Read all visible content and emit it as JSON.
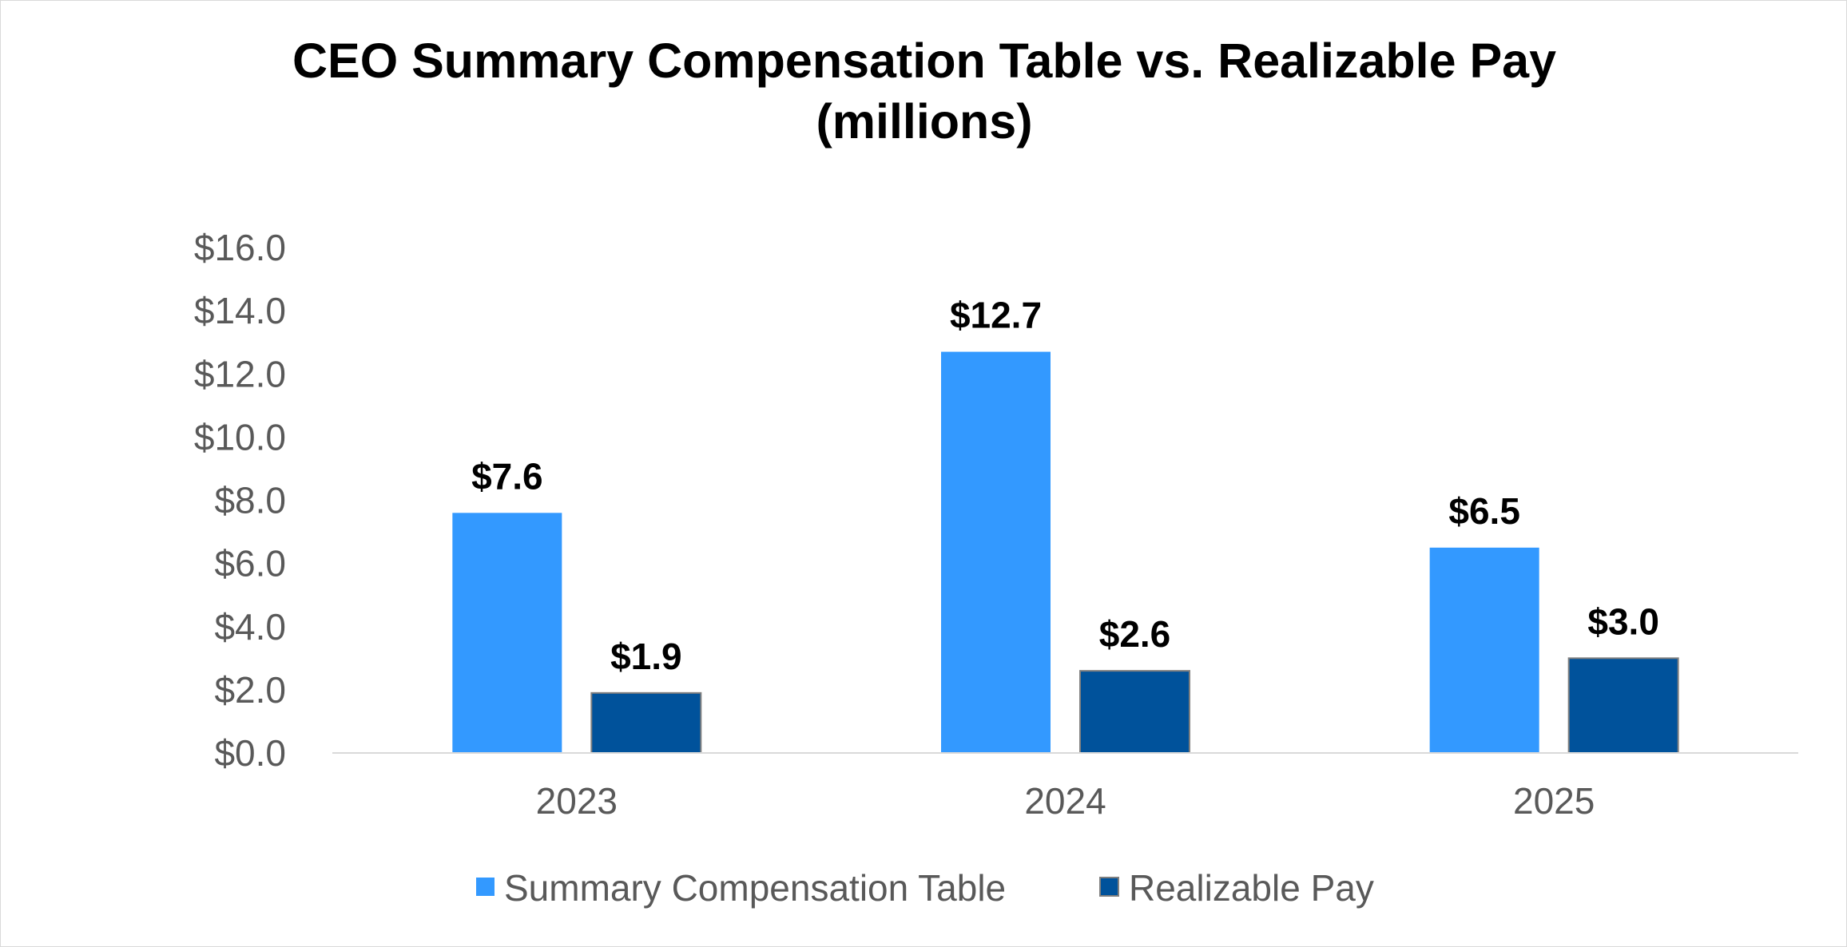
{
  "chart_data": {
    "type": "bar",
    "title_lines": [
      "CEO Summary Compensation Table vs. Realizable Pay",
      "(millions)"
    ],
    "xlabel": "",
    "ylabel": "",
    "categories": [
      "2023",
      "2024",
      "2025"
    ],
    "ylim": [
      0,
      16
    ],
    "y_ticks": [
      0,
      2,
      4,
      6,
      8,
      10,
      12,
      14,
      16
    ],
    "y_tick_labels": [
      "$0.0",
      "$2.0",
      "$4.0",
      "$6.0",
      "$8.0",
      "$10.0",
      "$12.0",
      "$14.0",
      "$16.0"
    ],
    "grid": false,
    "legend_position": "bottom",
    "series": [
      {
        "name": "Summary Compensation Table",
        "color": "#3399ff",
        "values": [
          7.6,
          12.7,
          6.5
        ],
        "data_labels": [
          "$7.6",
          "$12.7",
          "$6.5"
        ]
      },
      {
        "name": "Realizable Pay",
        "color": "#00529b",
        "values": [
          1.9,
          2.6,
          3.0
        ],
        "data_labels": [
          "$1.9",
          "$2.6",
          "$3.0"
        ]
      }
    ]
  }
}
